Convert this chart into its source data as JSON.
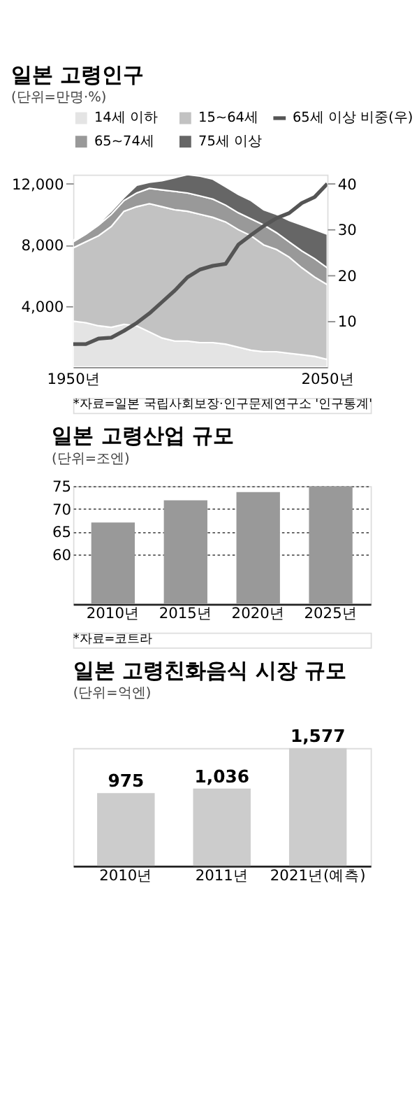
{
  "chart_data": [
    {
      "type": "area",
      "stacked": true,
      "title": "일본 고령인구",
      "subtitle": "(단위=만명·%)",
      "x": [
        1950,
        1955,
        1960,
        1965,
        1970,
        1975,
        1980,
        1985,
        1990,
        1995,
        2000,
        2005,
        2010,
        2015,
        2020,
        2025,
        2030,
        2035,
        2040,
        2045,
        2050
      ],
      "series": [
        {
          "name": "14세 이하",
          "color": "#e4e4e4",
          "values": [
            3000,
            2900,
            2700,
            2600,
            2800,
            2700,
            2300,
            1900,
            1700,
            1700,
            1600,
            1600,
            1500,
            1300,
            1100,
            1000,
            1000,
            900,
            800,
            700,
            500
          ]
        },
        {
          "name": "15~64세",
          "color": "#c2c2c2",
          "values": [
            4800,
            5300,
            5900,
            6600,
            7400,
            7800,
            8400,
            8600,
            8600,
            8500,
            8400,
            8200,
            8000,
            7700,
            7500,
            7000,
            6700,
            6300,
            5700,
            5200,
            4900
          ]
        },
        {
          "name": "65~74세",
          "color": "#999999",
          "values": [
            400,
            500,
            700,
            800,
            700,
            900,
            1000,
            1100,
            1200,
            1200,
            1200,
            1200,
            1100,
            1100,
            1100,
            1300,
            1100,
            1000,
            1100,
            1200,
            1100
          ]
        },
        {
          "name": "75세 이상",
          "color": "#666666",
          "values": [
            100,
            100,
            100,
            200,
            200,
            500,
            400,
            600,
            900,
            1200,
            1300,
            1300,
            1200,
            1200,
            1200,
            1000,
            1200,
            1400,
            1700,
            1900,
            2200
          ]
        },
        {
          "name": "65세 이상 비중(우)",
          "type": "line",
          "axis": "y2",
          "color": "#555555",
          "values": [
            5.0,
            5.0,
            6.2,
            6.4,
            7.9,
            9.6,
            11.7,
            14.2,
            16.7,
            19.6,
            21.3,
            22.1,
            22.5,
            26.7,
            28.8,
            30.8,
            32.5,
            33.6,
            35.8,
            37.1,
            40
          ]
        }
      ],
      "xlim": [
        1950,
        2050
      ],
      "xticks": [
        {
          "value": 1950,
          "label": "1950년"
        },
        {
          "value": 2050,
          "label": "2050년"
        }
      ],
      "ylim": [
        0,
        12600
      ],
      "yticks": [
        {
          "value": 4000,
          "label": "4,000"
        },
        {
          "value": 8000,
          "label": "8,000"
        },
        {
          "value": 12000,
          "label": "12,000"
        }
      ],
      "y2lim": [
        0,
        42
      ],
      "y2ticks": [
        10,
        20,
        30,
        40
      ],
      "legend": "top",
      "annotations": [
        "*자료=일본 국립사회보장·인구문제연구소 '인구통계'"
      ]
    },
    {
      "type": "bar",
      "title": "일본 고령산업 규모",
      "subtitle": "(단위=조엔)",
      "categories": [
        "2010년",
        "2015년",
        "2020년",
        "2025년"
      ],
      "values": [
        67,
        71.9,
        73.7,
        75
      ],
      "color": "#999999",
      "ylim": [
        49,
        75
      ],
      "yticks": [
        60,
        65,
        70,
        75
      ],
      "grid": "y",
      "annotations": [
        "*자료=코트라"
      ]
    },
    {
      "type": "bar",
      "title": "일본 고령친화음식 시장 규모",
      "subtitle": "(단위=억엔)",
      "categories": [
        "2010년",
        "2011년",
        "2021년(예측)"
      ],
      "values": [
        975,
        1036,
        1577
      ],
      "value_labels": [
        "975",
        "1,036",
        "1,577"
      ],
      "color": "#cccccc",
      "tick_labels": "x"
    }
  ]
}
